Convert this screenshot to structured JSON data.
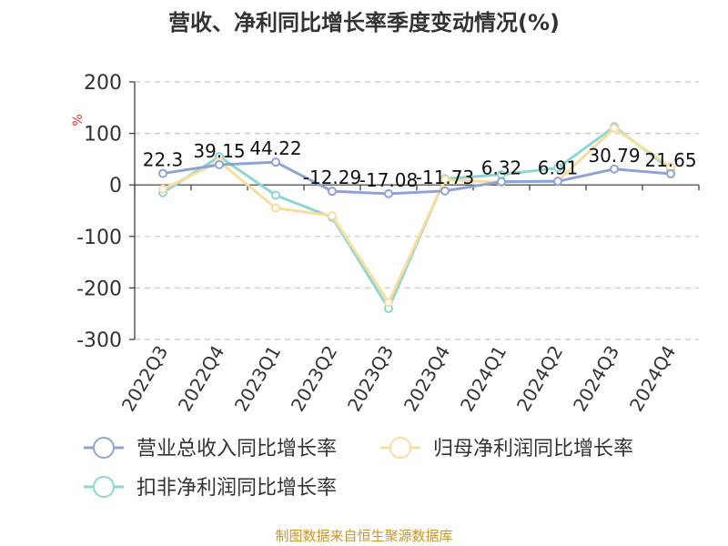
{
  "chart_data": {
    "type": "line",
    "title": "营收、净利同比增长率季度变动情况(%)",
    "ylabel": "%",
    "ylim": [
      -300,
      200
    ],
    "yticks": [
      200,
      100,
      0,
      -100,
      -200,
      -300
    ],
    "categories": [
      "2022Q3",
      "2022Q4",
      "2023Q1",
      "2023Q2",
      "2023Q3",
      "2023Q4",
      "2024Q1",
      "2024Q2",
      "2024Q3",
      "2024Q4"
    ],
    "grid": true,
    "legend_position": "bottom",
    "series": [
      {
        "name": "营业总收入同比增长率",
        "color": "#8fa3d4",
        "values": [
          22.3,
          39.15,
          44.22,
          -12.29,
          -17.08,
          -11.73,
          6.32,
          6.91,
          30.79,
          21.65
        ],
        "labels": [
          "22.3",
          "39.15",
          "44.22",
          "-12.29",
          "-17.08",
          "-11.73",
          "6.32",
          "6.91",
          "30.79",
          "21.65"
        ]
      },
      {
        "name": "归母净利润同比增长率",
        "color": "#f9dca0",
        "values": [
          -8,
          45,
          -45,
          -60,
          -228,
          10,
          5,
          8,
          110,
          35
        ]
      },
      {
        "name": "扣非净利润同比增长率",
        "color": "#8fd6d3",
        "values": [
          -15,
          55,
          -20,
          -63,
          -240,
          12,
          20,
          33,
          113,
          30
        ]
      }
    ]
  },
  "source_text": "制图数据来自恒生聚源数据库"
}
